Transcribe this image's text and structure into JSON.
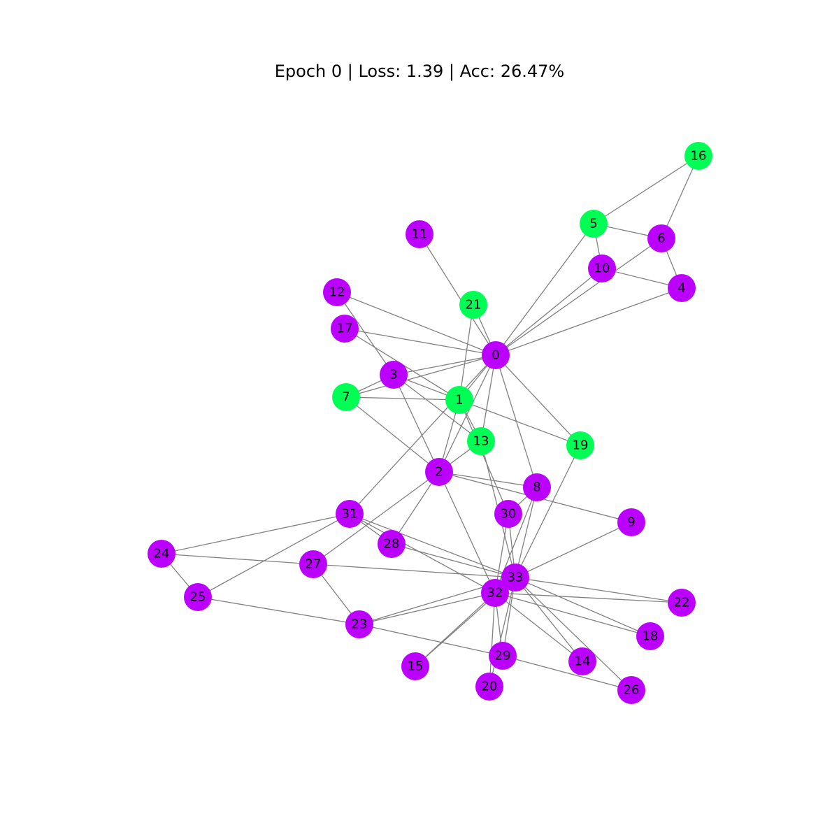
{
  "title": "Epoch 0 | Loss: 1.39 | Acc: 26.47%",
  "colors": {
    "class_a": "#bb00ff",
    "class_b": "#00ff55",
    "edge": "#808080"
  },
  "graph": {
    "nodes": [
      {
        "id": 0,
        "label": "0",
        "class": "class_a"
      },
      {
        "id": 1,
        "label": "1",
        "class": "class_b"
      },
      {
        "id": 2,
        "label": "2",
        "class": "class_a"
      },
      {
        "id": 3,
        "label": "3",
        "class": "class_a"
      },
      {
        "id": 4,
        "label": "4",
        "class": "class_a"
      },
      {
        "id": 5,
        "label": "5",
        "class": "class_b"
      },
      {
        "id": 6,
        "label": "6",
        "class": "class_a"
      },
      {
        "id": 7,
        "label": "7",
        "class": "class_b"
      },
      {
        "id": 8,
        "label": "8",
        "class": "class_a"
      },
      {
        "id": 9,
        "label": "9",
        "class": "class_a"
      },
      {
        "id": 10,
        "label": "10",
        "class": "class_a"
      },
      {
        "id": 11,
        "label": "11",
        "class": "class_a"
      },
      {
        "id": 12,
        "label": "12",
        "class": "class_a"
      },
      {
        "id": 13,
        "label": "13",
        "class": "class_b"
      },
      {
        "id": 14,
        "label": "14",
        "class": "class_a"
      },
      {
        "id": 15,
        "label": "15",
        "class": "class_a"
      },
      {
        "id": 16,
        "label": "16",
        "class": "class_b"
      },
      {
        "id": 17,
        "label": "17",
        "class": "class_a"
      },
      {
        "id": 18,
        "label": "18",
        "class": "class_a"
      },
      {
        "id": 19,
        "label": "19",
        "class": "class_b"
      },
      {
        "id": 20,
        "label": "20",
        "class": "class_a"
      },
      {
        "id": 21,
        "label": "21",
        "class": "class_b"
      },
      {
        "id": 22,
        "label": "22",
        "class": "class_a"
      },
      {
        "id": 23,
        "label": "23",
        "class": "class_a"
      },
      {
        "id": 24,
        "label": "24",
        "class": "class_a"
      },
      {
        "id": 25,
        "label": "25",
        "class": "class_a"
      },
      {
        "id": 26,
        "label": "26",
        "class": "class_a"
      },
      {
        "id": 27,
        "label": "27",
        "class": "class_a"
      },
      {
        "id": 28,
        "label": "28",
        "class": "class_a"
      },
      {
        "id": 29,
        "label": "29",
        "class": "class_a"
      },
      {
        "id": 30,
        "label": "30",
        "class": "class_a"
      },
      {
        "id": 31,
        "label": "31",
        "class": "class_a"
      },
      {
        "id": 32,
        "label": "32",
        "class": "class_a"
      },
      {
        "id": 33,
        "label": "33",
        "class": "class_a"
      }
    ],
    "edges": [
      [
        0,
        1
      ],
      [
        0,
        2
      ],
      [
        0,
        3
      ],
      [
        0,
        4
      ],
      [
        0,
        5
      ],
      [
        0,
        6
      ],
      [
        0,
        7
      ],
      [
        0,
        8
      ],
      [
        0,
        10
      ],
      [
        0,
        11
      ],
      [
        0,
        12
      ],
      [
        0,
        13
      ],
      [
        0,
        17
      ],
      [
        0,
        19
      ],
      [
        0,
        21
      ],
      [
        0,
        31
      ],
      [
        1,
        2
      ],
      [
        1,
        3
      ],
      [
        1,
        7
      ],
      [
        1,
        13
      ],
      [
        1,
        17
      ],
      [
        1,
        19
      ],
      [
        1,
        21
      ],
      [
        1,
        30
      ],
      [
        2,
        3
      ],
      [
        2,
        7
      ],
      [
        2,
        8
      ],
      [
        2,
        9
      ],
      [
        2,
        13
      ],
      [
        2,
        27
      ],
      [
        2,
        28
      ],
      [
        2,
        32
      ],
      [
        3,
        7
      ],
      [
        3,
        12
      ],
      [
        3,
        13
      ],
      [
        4,
        6
      ],
      [
        4,
        10
      ],
      [
        5,
        6
      ],
      [
        5,
        10
      ],
      [
        5,
        16
      ],
      [
        6,
        16
      ],
      [
        8,
        30
      ],
      [
        8,
        32
      ],
      [
        8,
        33
      ],
      [
        9,
        33
      ],
      [
        13,
        33
      ],
      [
        14,
        32
      ],
      [
        14,
        33
      ],
      [
        15,
        32
      ],
      [
        15,
        33
      ],
      [
        18,
        32
      ],
      [
        18,
        33
      ],
      [
        19,
        33
      ],
      [
        20,
        32
      ],
      [
        20,
        33
      ],
      [
        22,
        32
      ],
      [
        22,
        33
      ],
      [
        23,
        25
      ],
      [
        23,
        27
      ],
      [
        23,
        29
      ],
      [
        23,
        32
      ],
      [
        23,
        33
      ],
      [
        24,
        25
      ],
      [
        24,
        27
      ],
      [
        24,
        31
      ],
      [
        25,
        31
      ],
      [
        26,
        29
      ],
      [
        26,
        33
      ],
      [
        27,
        33
      ],
      [
        28,
        31
      ],
      [
        28,
        33
      ],
      [
        29,
        32
      ],
      [
        29,
        33
      ],
      [
        30,
        32
      ],
      [
        30,
        33
      ],
      [
        31,
        32
      ],
      [
        31,
        33
      ],
      [
        32,
        33
      ]
    ]
  }
}
